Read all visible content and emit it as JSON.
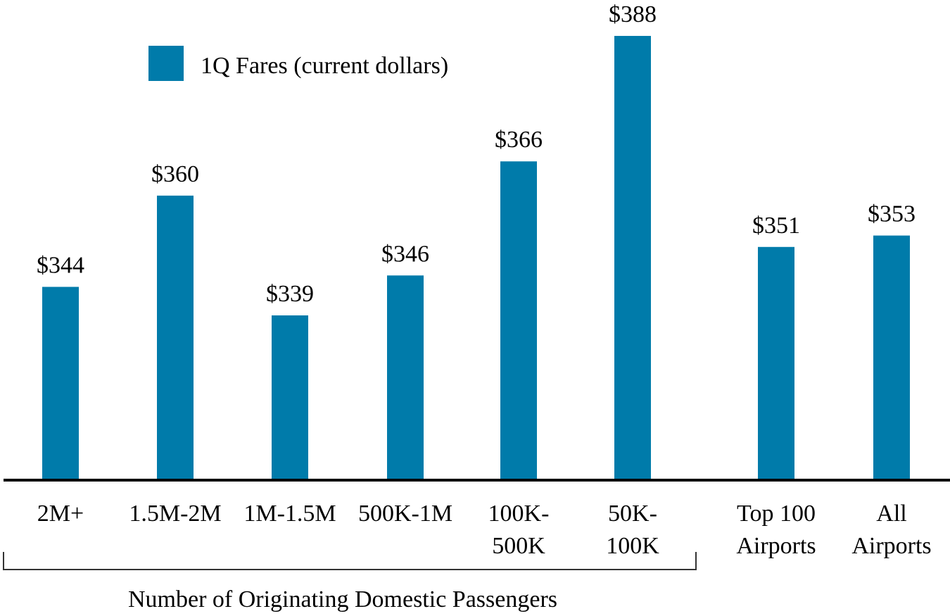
{
  "chart_data": {
    "type": "bar",
    "categories": [
      [
        "2M+"
      ],
      [
        "1.5M-2M"
      ],
      [
        "1M-1.5M"
      ],
      [
        "500K-1M"
      ],
      [
        "100K-",
        "500K"
      ],
      [
        "50K-",
        "100K"
      ],
      [
        "Top 100",
        "Airports"
      ],
      [
        "All",
        "Airports"
      ]
    ],
    "series": [
      {
        "name": "1Q Fares (current dollars)",
        "values": [
          344,
          360,
          339,
          346,
          366,
          388,
          351,
          353
        ],
        "color": "#007baa"
      }
    ],
    "data_labels": [
      "$344",
      "$360",
      "$339",
      "$346",
      "$366",
      "$388",
      "$351",
      "$353"
    ],
    "group_label": "Number of Originating Domestic Passengers",
    "legend_position": "top-left",
    "axis_color": "#000000"
  }
}
